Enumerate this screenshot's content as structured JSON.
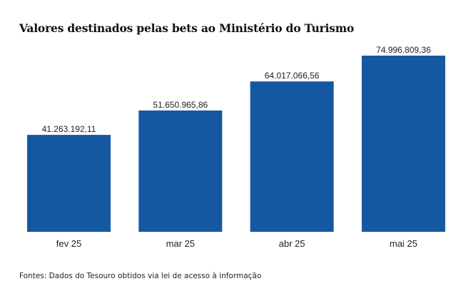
{
  "chart_data": {
    "type": "bar",
    "title": "Valores destinados pelas bets ao Ministério do Turismo",
    "categories": [
      "fev 25",
      "mar 25",
      "abr 25",
      "mai 25"
    ],
    "values": [
      41263192.11,
      51650965.86,
      64017066.56,
      74996809.36
    ],
    "value_labels": [
      "41.263.192,11",
      "51.650.965,86",
      "64.017.066,56",
      "74.996.809,36"
    ],
    "xlabel": "",
    "ylabel": "",
    "ylim": [
      0,
      75000000
    ],
    "grid": false,
    "legend": "none",
    "bar_color": "#1558a2",
    "source": "Fontes: Dados do Tesouro obtidos via lei de acesso à informação"
  }
}
